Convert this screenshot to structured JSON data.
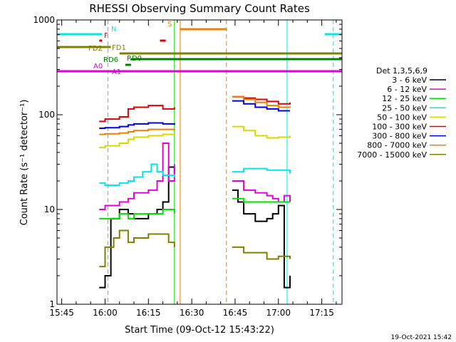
{
  "chart_data": {
    "type": "line",
    "title": "RHESSI Observing Summary Count Rates",
    "xlabel": "Start Time (09-Oct-12 15:43:22)",
    "ylabel": "Count Rate (s⁻¹ detector⁻¹)",
    "yscale": "log",
    "ylim": [
      1,
      1000
    ],
    "y_ticks": [
      {
        "value": 1,
        "label": "1"
      },
      {
        "value": 10,
        "label": "10"
      },
      {
        "value": 100,
        "label": "100"
      },
      {
        "value": 1000,
        "label": "1000"
      }
    ],
    "x_ticks": [
      "15:45",
      "16:00",
      "16:15",
      "16:30",
      "16:45",
      "17:00",
      "17:15"
    ],
    "legend_title": "Det 1,3,5,6,9",
    "legend_position": "right",
    "grid": false,
    "series": [
      {
        "name": "3 - 6 keV",
        "color": "#000000",
        "points": [
          [
            "15:58",
            1.5
          ],
          [
            "16:00",
            2
          ],
          [
            "16:02",
            8
          ],
          [
            "16:05",
            10
          ],
          [
            "16:08",
            9
          ],
          [
            "16:10",
            8
          ],
          [
            "16:15",
            9
          ],
          [
            "16:18",
            10
          ],
          [
            "16:20",
            12
          ],
          [
            "16:22",
            28
          ],
          [
            "16:24",
            24
          ],
          [
            "16:44",
            16
          ],
          [
            "16:46",
            12
          ],
          [
            "16:48",
            9
          ],
          [
            "16:52",
            7.5
          ],
          [
            "16:56",
            8
          ],
          [
            "16:58",
            9
          ],
          [
            "17:00",
            11
          ],
          [
            "17:02",
            1.5
          ],
          [
            "17:04",
            2
          ]
        ]
      },
      {
        "name": "6 - 12 keV",
        "color": "#e000e0",
        "points": [
          [
            "15:58",
            10
          ],
          [
            "16:00",
            11
          ],
          [
            "16:05",
            12
          ],
          [
            "16:08",
            13
          ],
          [
            "16:10",
            15
          ],
          [
            "16:15",
            16
          ],
          [
            "16:18",
            20
          ],
          [
            "16:20",
            50
          ],
          [
            "16:22",
            20
          ],
          [
            "16:24",
            30
          ],
          [
            "16:44",
            20
          ],
          [
            "16:48",
            16
          ],
          [
            "16:52",
            15
          ],
          [
            "16:56",
            14
          ],
          [
            "16:58",
            13
          ],
          [
            "17:00",
            12
          ],
          [
            "17:02",
            14
          ],
          [
            "17:04",
            12
          ]
        ]
      },
      {
        "name": "12 - 25 keV",
        "color": "#00e000",
        "points": [
          [
            "15:58",
            8
          ],
          [
            "16:00",
            8
          ],
          [
            "16:05",
            9
          ],
          [
            "16:08",
            8
          ],
          [
            "16:10",
            9
          ],
          [
            "16:15",
            9
          ],
          [
            "16:20",
            10
          ],
          [
            "16:24",
            9
          ],
          [
            "16:44",
            13
          ],
          [
            "16:48",
            12
          ],
          [
            "16:52",
            12
          ],
          [
            "16:56",
            12
          ],
          [
            "17:00",
            12
          ],
          [
            "17:04",
            12
          ]
        ]
      },
      {
        "name": "25 - 50 keV",
        "color": "#00e8e8",
        "points": [
          [
            "15:58",
            19
          ],
          [
            "16:00",
            18
          ],
          [
            "16:05",
            19
          ],
          [
            "16:08",
            20
          ],
          [
            "16:10",
            22
          ],
          [
            "16:13",
            25
          ],
          [
            "16:16",
            30
          ],
          [
            "16:18",
            25
          ],
          [
            "16:20",
            23
          ],
          [
            "16:24",
            22
          ],
          [
            "16:44",
            25
          ],
          [
            "16:48",
            27
          ],
          [
            "16:52",
            27
          ],
          [
            "16:56",
            26
          ],
          [
            "17:00",
            26
          ],
          [
            "17:04",
            24
          ]
        ]
      },
      {
        "name": "50 - 100 keV",
        "color": "#d8d800",
        "points": [
          [
            "15:58",
            45
          ],
          [
            "16:00",
            47
          ],
          [
            "16:05",
            50
          ],
          [
            "16:08",
            55
          ],
          [
            "16:10",
            58
          ],
          [
            "16:15",
            60
          ],
          [
            "16:20",
            62
          ],
          [
            "16:24",
            60
          ],
          [
            "16:44",
            75
          ],
          [
            "16:48",
            68
          ],
          [
            "16:52",
            60
          ],
          [
            "16:56",
            57
          ],
          [
            "17:00",
            58
          ],
          [
            "17:04",
            60
          ]
        ]
      },
      {
        "name": "100 - 300 keV",
        "color": "#e00000",
        "points": [
          [
            "15:58",
            85
          ],
          [
            "16:00",
            90
          ],
          [
            "16:05",
            95
          ],
          [
            "16:08",
            115
          ],
          [
            "16:10",
            120
          ],
          [
            "16:15",
            125
          ],
          [
            "16:20",
            115
          ],
          [
            "16:24",
            120
          ],
          [
            "16:44",
            155
          ],
          [
            "16:48",
            150
          ],
          [
            "16:52",
            145
          ],
          [
            "16:56",
            138
          ],
          [
            "17:00",
            130
          ],
          [
            "17:04",
            135
          ]
        ]
      },
      {
        "name": "300 - 800 keV",
        "color": "#0000e0",
        "points": [
          [
            "15:58",
            72
          ],
          [
            "16:00",
            73
          ],
          [
            "16:05",
            75
          ],
          [
            "16:08",
            78
          ],
          [
            "16:10",
            80
          ],
          [
            "16:15",
            82
          ],
          [
            "16:20",
            80
          ],
          [
            "16:24",
            78
          ],
          [
            "16:44",
            140
          ],
          [
            "16:48",
            130
          ],
          [
            "16:52",
            120
          ],
          [
            "16:56",
            115
          ],
          [
            "17:00",
            110
          ],
          [
            "17:04",
            110
          ]
        ]
      },
      {
        "name": "800 - 7000 keV",
        "color": "#f08000",
        "points": [
          [
            "15:58",
            62
          ],
          [
            "16:00",
            63
          ],
          [
            "16:05",
            64
          ],
          [
            "16:08",
            66
          ],
          [
            "16:10",
            68
          ],
          [
            "16:15",
            70
          ],
          [
            "16:20",
            70
          ],
          [
            "16:24",
            68
          ],
          [
            "16:44",
            155
          ],
          [
            "16:48",
            145
          ],
          [
            "16:52",
            135
          ],
          [
            "16:56",
            125
          ],
          [
            "17:00",
            120
          ],
          [
            "17:04",
            118
          ]
        ]
      },
      {
        "name": "7000 - 15000 keV",
        "color": "#808000",
        "points": [
          [
            "15:58",
            2.5
          ],
          [
            "16:00",
            4
          ],
          [
            "16:03",
            5
          ],
          [
            "16:05",
            6
          ],
          [
            "16:08",
            4.5
          ],
          [
            "16:10",
            5
          ],
          [
            "16:15",
            5.5
          ],
          [
            "16:18",
            5.5
          ],
          [
            "16:22",
            4.5
          ],
          [
            "16:24",
            4
          ],
          [
            "16:44",
            4
          ],
          [
            "16:48",
            3.5
          ],
          [
            "16:52",
            3.5
          ],
          [
            "16:56",
            3
          ],
          [
            "17:00",
            3.2
          ],
          [
            "17:04",
            3
          ]
        ]
      }
    ],
    "flags": [
      {
        "label": "N",
        "color": "#00e8e8",
        "segments": [
          [
            "15:43:22",
            "15:59"
          ],
          [
            "17:16",
            "17:22"
          ]
        ]
      },
      {
        "label": "F",
        "color": "#e00000",
        "segments": [
          [
            "15:58",
            "15:59"
          ],
          [
            "16:19",
            "16:21"
          ]
        ]
      },
      {
        "label": "S",
        "color": "#f08000",
        "segments": [
          [
            "16:26",
            "16:42"
          ]
        ]
      },
      {
        "label": "FD1",
        "color": "#808000",
        "segments": [
          [
            "15:43:22",
            "16:02"
          ]
        ]
      },
      {
        "label": "FD2",
        "color": "#808000",
        "segments": [
          [
            "16:05",
            "17:22"
          ]
        ]
      },
      {
        "label": "RD0",
        "color": "#008000",
        "segments": [
          [
            "16:09",
            "17:22"
          ]
        ]
      },
      {
        "label": "RD6",
        "color": "#008000",
        "segments": [
          [
            "16:07",
            "16:09"
          ]
        ]
      },
      {
        "label": "A0",
        "color": "#e000e0",
        "segments": [
          [
            "15:43:22",
            "16:01"
          ]
        ]
      },
      {
        "label": "A1",
        "color": "#e000e0",
        "segments": [
          [
            "16:01",
            "17:22"
          ]
        ]
      }
    ],
    "markers": [
      {
        "time": "15:43:22",
        "color": "#00e8e8",
        "style": "solid"
      },
      {
        "time": "16:01",
        "color": "#00e8e8",
        "style": "dashed"
      },
      {
        "time": "16:24",
        "color": "#00e000",
        "style": "solid"
      },
      {
        "time": "16:26",
        "color": "#f08000",
        "style": "solid"
      },
      {
        "time": "16:42",
        "color": "#f08000",
        "style": "dashed"
      },
      {
        "time": "17:03",
        "color": "#00e8e8",
        "style": "solid"
      },
      {
        "time": "17:19",
        "color": "#00e8e8",
        "style": "dashed"
      }
    ]
  },
  "footer": {
    "timestamp": "19-Oct-2021 15:42"
  }
}
